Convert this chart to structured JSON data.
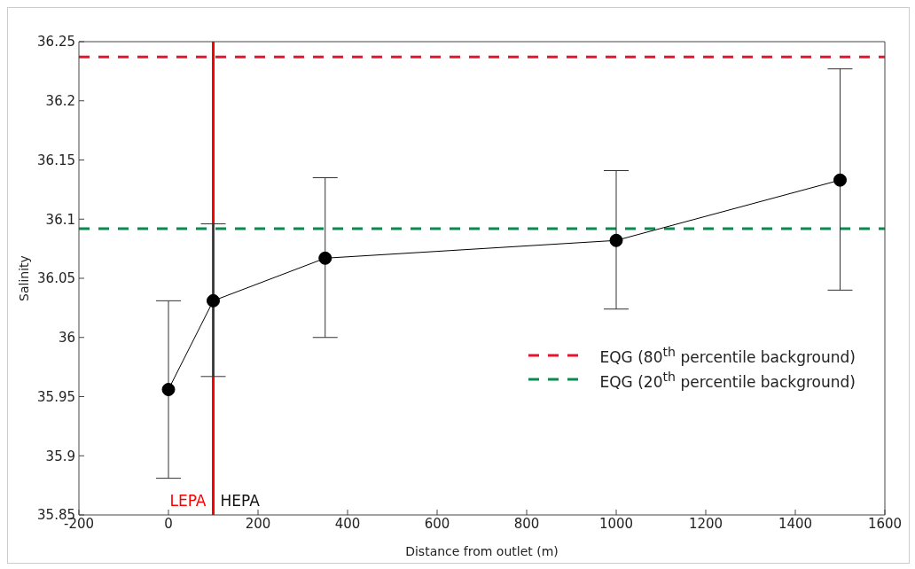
{
  "chart_data": {
    "type": "line",
    "xlabel": "Distance from outlet (m)",
    "ylabel": "Salinity",
    "x": [
      0,
      100,
      350,
      1000,
      1500
    ],
    "series": [
      {
        "color": "#000000",
        "values": [
          35.956,
          36.031,
          36.067,
          36.082,
          36.133
        ],
        "errors": [
          [
            35.881,
            36.031
          ],
          [
            35.967,
            36.096
          ],
          [
            36.0,
            36.135
          ],
          [
            36.024,
            36.141
          ],
          [
            36.04,
            36.227
          ]
        ]
      }
    ],
    "marker": "circle",
    "line_style": "solid",
    "xlim": [
      -200,
      1600
    ],
    "xticks": [
      -200,
      0,
      200,
      400,
      600,
      800,
      1000,
      1200,
      1400,
      1600
    ],
    "ylim": [
      35.85,
      36.25
    ],
    "yticks": [
      35.85,
      35.9,
      35.95,
      36,
      36.05,
      36.1,
      36.15,
      36.2,
      36.25
    ],
    "ref_lines": [
      {
        "axis": "y",
        "value": 36.237,
        "label": "EQG (80$^{th}$ percentile background)",
        "color": "#e8132f",
        "line_style": "dashed"
      },
      {
        "axis": "y",
        "value": 36.092,
        "label": "EQG (20$^{th}$ percentile background)",
        "color": "#0a8a50",
        "line_style": "dashed"
      },
      {
        "axis": "x",
        "value": 100,
        "color": "#ff0000",
        "line_style": "solid"
      }
    ],
    "annotations": [
      "LEPA",
      "HEPA"
    ],
    "legend": "right"
  }
}
